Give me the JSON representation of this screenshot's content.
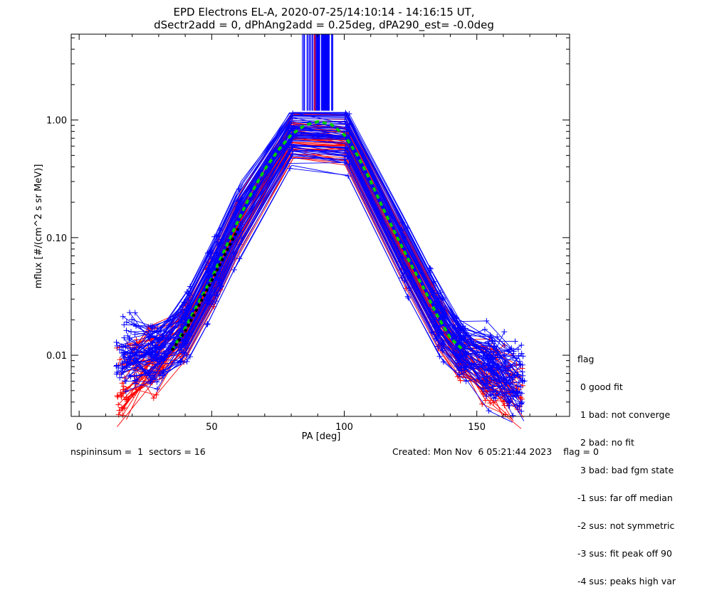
{
  "chart_data": {
    "type": "line",
    "title_line1": "EPD Electrons EL-A, 2020-07-25/14:10:14 - 14:16:15 UT,",
    "title_line2": "dSectr2add = 0, dPhAng2add = 0.25deg, dPA290_est=  -0.0deg",
    "xlabel": "PA [deg]",
    "ylabel": "mflux [#/(cm^2 s sr MeV)]",
    "xlim": [
      -3,
      185
    ],
    "ylim_log10": [
      -2.52,
      0.73
    ],
    "x_ticks": [
      {
        "value": 0,
        "label": "0"
      },
      {
        "value": 50,
        "label": "50"
      },
      {
        "value": 100,
        "label": "100"
      },
      {
        "value": 150,
        "label": "150"
      }
    ],
    "y_ticks": [
      {
        "value": 0.01,
        "label": "0.01"
      },
      {
        "value": 0.1,
        "label": "0.10"
      },
      {
        "value": 1.0,
        "label": "1.00"
      }
    ],
    "fit_curve_green": {
      "x": [
        35,
        40,
        45,
        50,
        55,
        60,
        65,
        70,
        75,
        80,
        85,
        90,
        95,
        100,
        105,
        110,
        115,
        120,
        125,
        130,
        135,
        140,
        145
      ],
      "y": [
        0.011,
        0.017,
        0.028,
        0.045,
        0.08,
        0.14,
        0.24,
        0.38,
        0.55,
        0.75,
        0.9,
        0.97,
        0.92,
        0.75,
        0.5,
        0.3,
        0.17,
        0.1,
        0.06,
        0.037,
        0.022,
        0.014,
        0.011
      ]
    },
    "fit_curve_black": {
      "x": [
        35,
        40,
        45,
        50,
        55,
        60
      ],
      "y": [
        0.011,
        0.016,
        0.026,
        0.043,
        0.072,
        0.12
      ]
    },
    "series": [
      {
        "name": "blue sector traces",
        "color": "#0000ff",
        "x": [
          14,
          18,
          25,
          35,
          40,
          45,
          50,
          55,
          60,
          65,
          70,
          75,
          80,
          85,
          90,
          95,
          100,
          105,
          110,
          115,
          120,
          125,
          130,
          135,
          140,
          145,
          150,
          155,
          160,
          165
        ],
        "y": [
          0.009,
          0.011,
          0.01,
          0.011,
          0.017,
          0.028,
          0.045,
          0.08,
          0.14,
          0.24,
          0.38,
          0.55,
          0.78,
          0.9,
          0.95,
          0.92,
          0.8,
          0.5,
          0.3,
          0.17,
          0.1,
          0.06,
          0.037,
          0.022,
          0.014,
          0.011,
          0.009,
          0.008,
          0.007,
          0.006
        ]
      },
      {
        "name": "red sector traces",
        "color": "#ff0000",
        "x": [
          14,
          18,
          25,
          35,
          40,
          45,
          50,
          55,
          60,
          65,
          70,
          75,
          80,
          85,
          90,
          95,
          100,
          105,
          110,
          115,
          120,
          125,
          130,
          135,
          140,
          145,
          150,
          155,
          160,
          165
        ],
        "y": [
          0.005,
          0.006,
          0.008,
          0.01,
          0.016,
          0.026,
          0.042,
          0.075,
          0.13,
          0.22,
          0.36,
          0.52,
          0.72,
          0.86,
          0.9,
          0.88,
          0.75,
          0.46,
          0.28,
          0.16,
          0.09,
          0.055,
          0.034,
          0.02,
          0.013,
          0.009,
          0.007,
          0.006,
          0.005,
          0.005
        ]
      }
    ],
    "grid": false
  },
  "legend": {
    "title": "flag",
    "items": [
      " 0 good fit",
      " 1 bad: not converge",
      " 2 bad: no fit",
      " 3 bad: bad fgm state",
      "-1 sus: far off median",
      "-2 sus: not symmetric",
      "-3 sus: fit peak off 90",
      "-4 sus: peaks high var"
    ]
  },
  "footer": {
    "left": "nspininsum =  1  sectors = 16",
    "right": "Created: Mon Nov  6 05:21:44 2023    flag = 0"
  },
  "colors": {
    "blue": "#0000ff",
    "red": "#ff0000",
    "green": "#00cc00",
    "black": "#000000"
  }
}
